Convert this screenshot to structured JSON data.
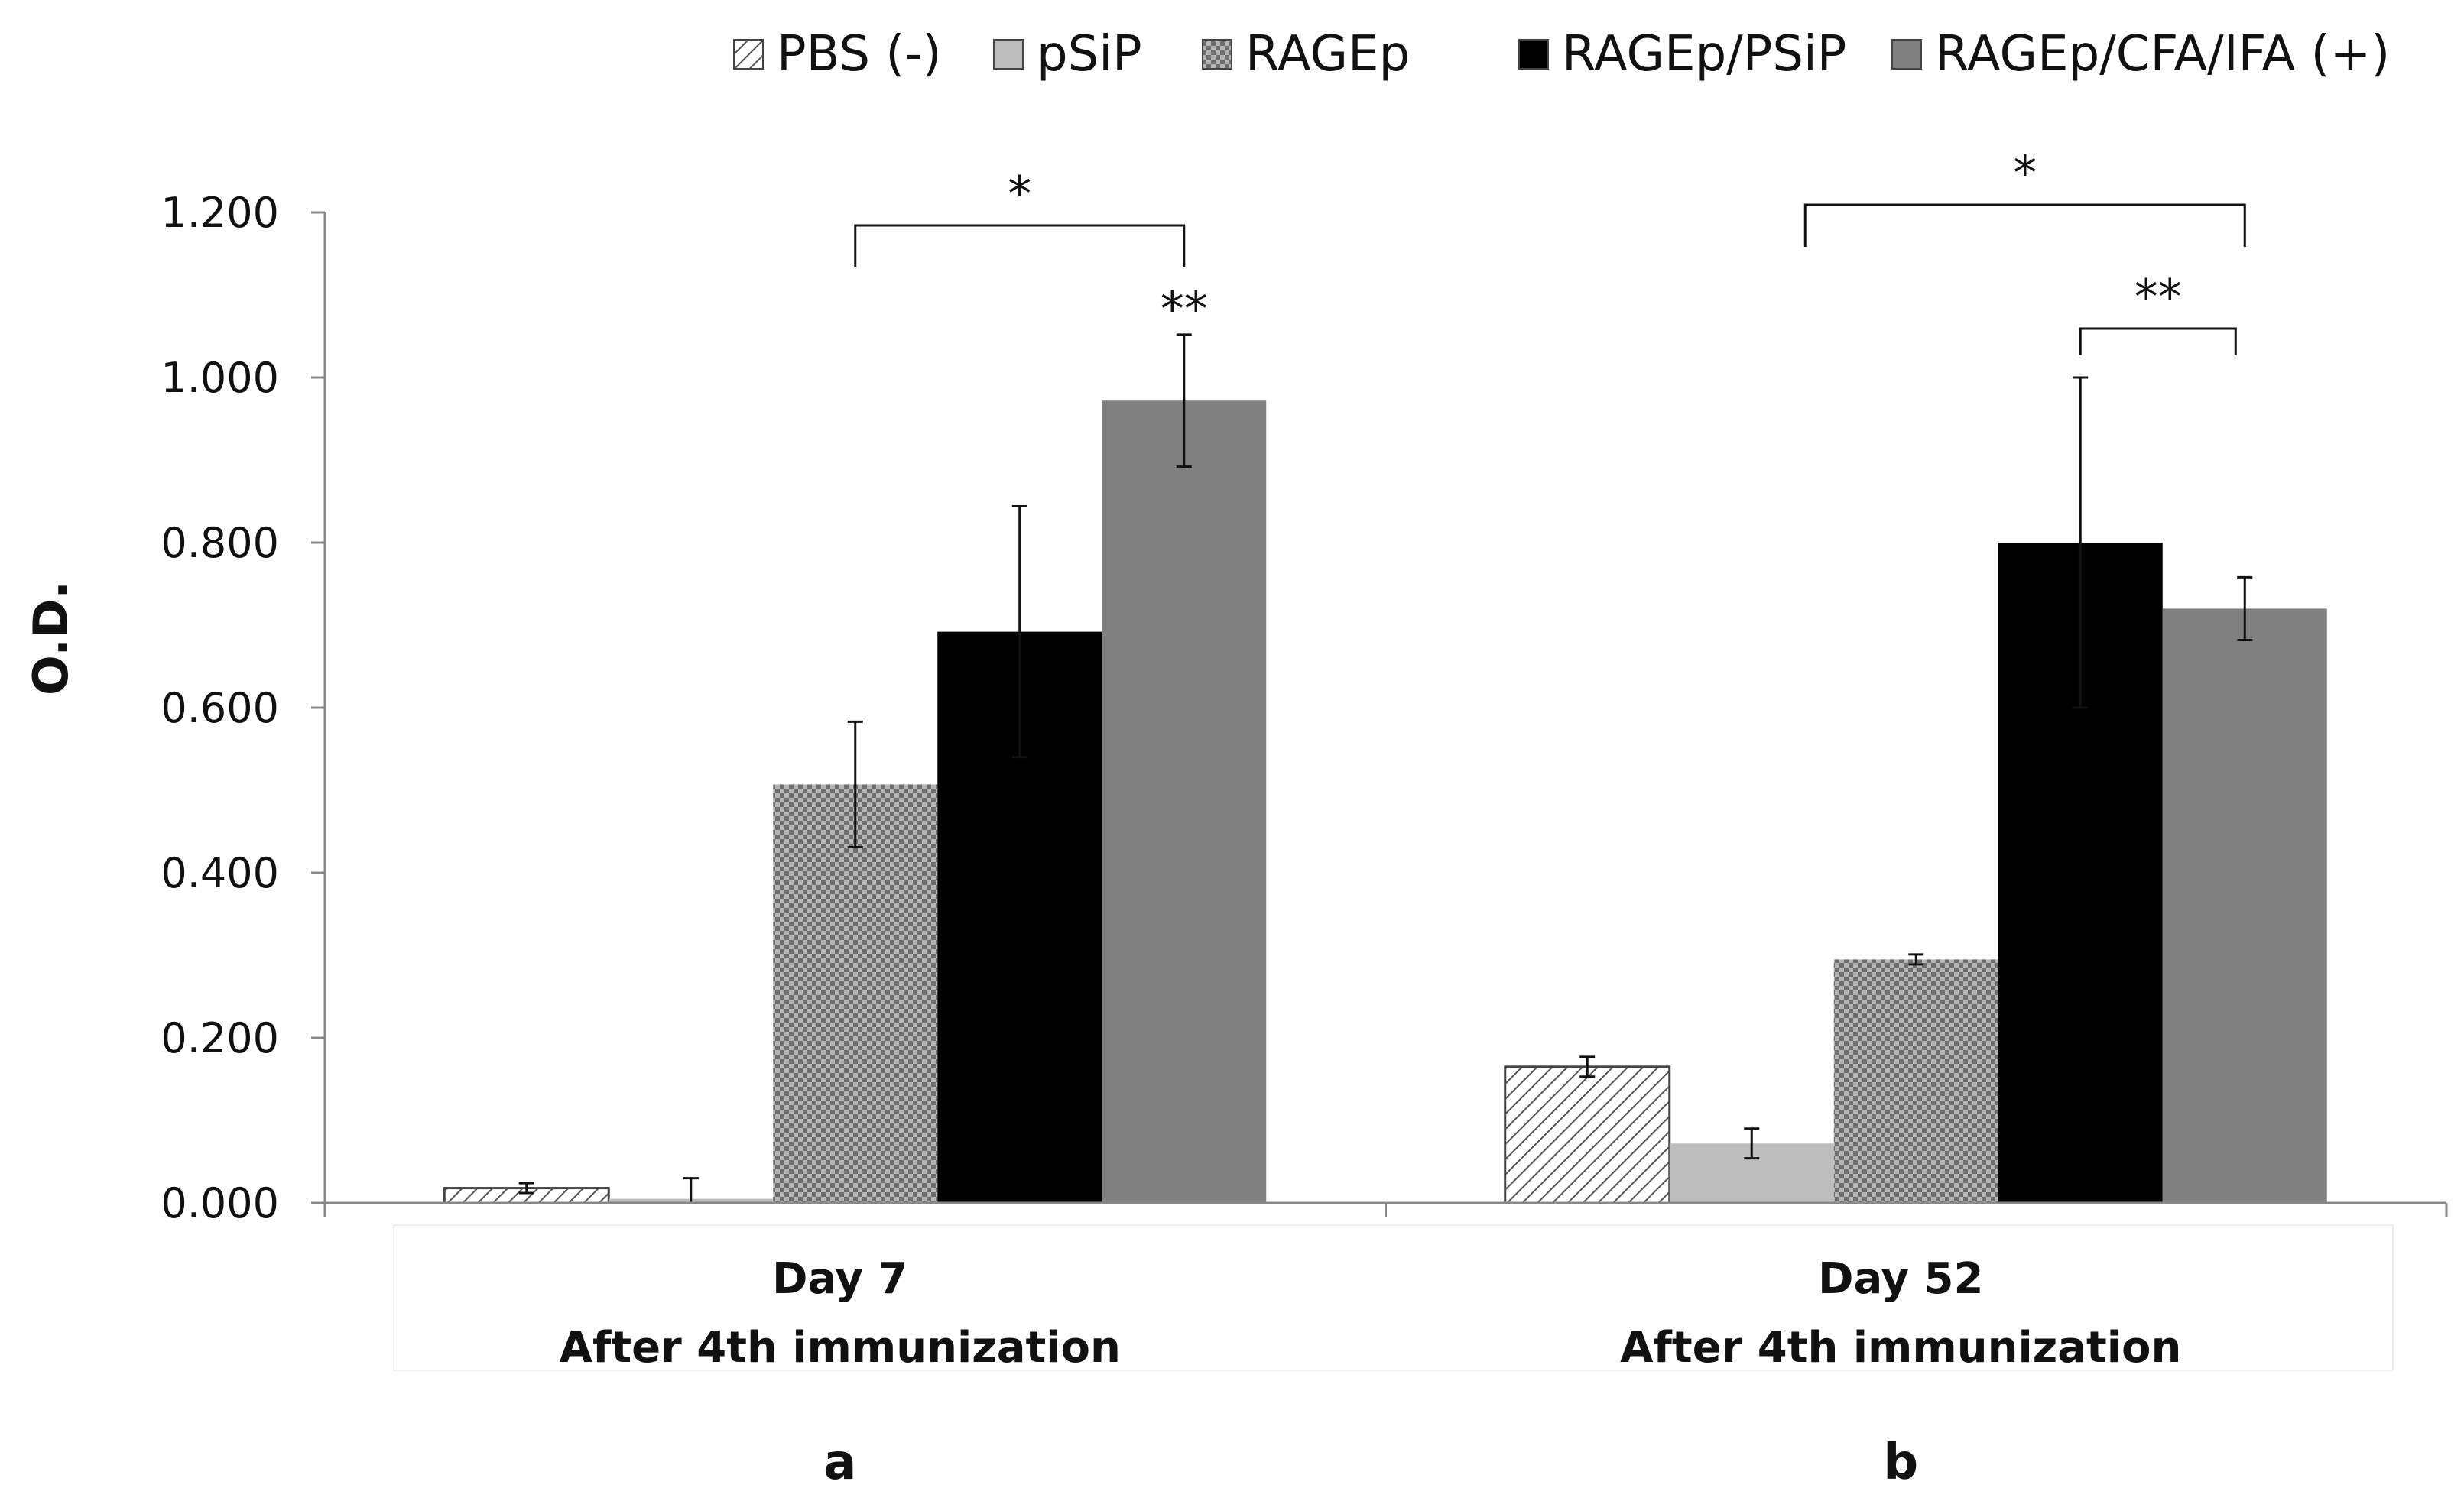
{
  "chart_data": {
    "type": "bar",
    "ylabel": "O.D.",
    "ylim": [
      0,
      1.2
    ],
    "yticks": [
      "0.000",
      "0.200",
      "0.400",
      "0.600",
      "0.800",
      "1.000",
      "1.200"
    ],
    "ytick_values": [
      0,
      0.2,
      0.4,
      0.6,
      0.8,
      1.0,
      1.2
    ],
    "categories": [
      {
        "line1": "Day 7",
        "line2": "After 4th immunization",
        "panel": "a"
      },
      {
        "line1": "Day 52",
        "line2": "After 4th immunization",
        "panel": "b"
      }
    ],
    "series": [
      {
        "name": "PBS (-)",
        "color": "#ffffff",
        "pattern": "diagonal-hatch",
        "values": [
          0.018,
          0.165
        ],
        "errors": [
          0.006,
          0.012
        ]
      },
      {
        "name": "pSiP",
        "color": "#bdbdbd",
        "pattern": "solid",
        "values": [
          0.005,
          0.072
        ],
        "errors": [
          0.025,
          0.018
        ]
      },
      {
        "name": "RAGEp",
        "color": "#8c8c8c",
        "pattern": "crosshatch",
        "values": [
          0.507,
          0.295
        ],
        "errors": [
          0.076,
          0.006
        ]
      },
      {
        "name": "RAGEp/PSiP",
        "color": "#000000",
        "pattern": "solid",
        "values": [
          0.692,
          0.8
        ],
        "errors": [
          0.152,
          0.2
        ]
      },
      {
        "name": "RAGEp/CFA/IFA (+)",
        "color": "#808080",
        "pattern": "solid",
        "values": [
          0.972,
          0.72
        ],
        "errors": [
          0.08,
          0.038
        ]
      }
    ],
    "legend_position": "top",
    "annotations": [
      {
        "group": 0,
        "from_series": 2,
        "to_series": 4,
        "label": "*",
        "type": "bracket"
      },
      {
        "group": 0,
        "series": 4,
        "label": "**",
        "type": "above-bar"
      },
      {
        "group": 1,
        "from_series": 1,
        "to_series": 4,
        "label": "*",
        "type": "bracket"
      },
      {
        "group": 1,
        "from_series": 3,
        "to_series": 4,
        "label": "**",
        "type": "bracket"
      }
    ]
  }
}
